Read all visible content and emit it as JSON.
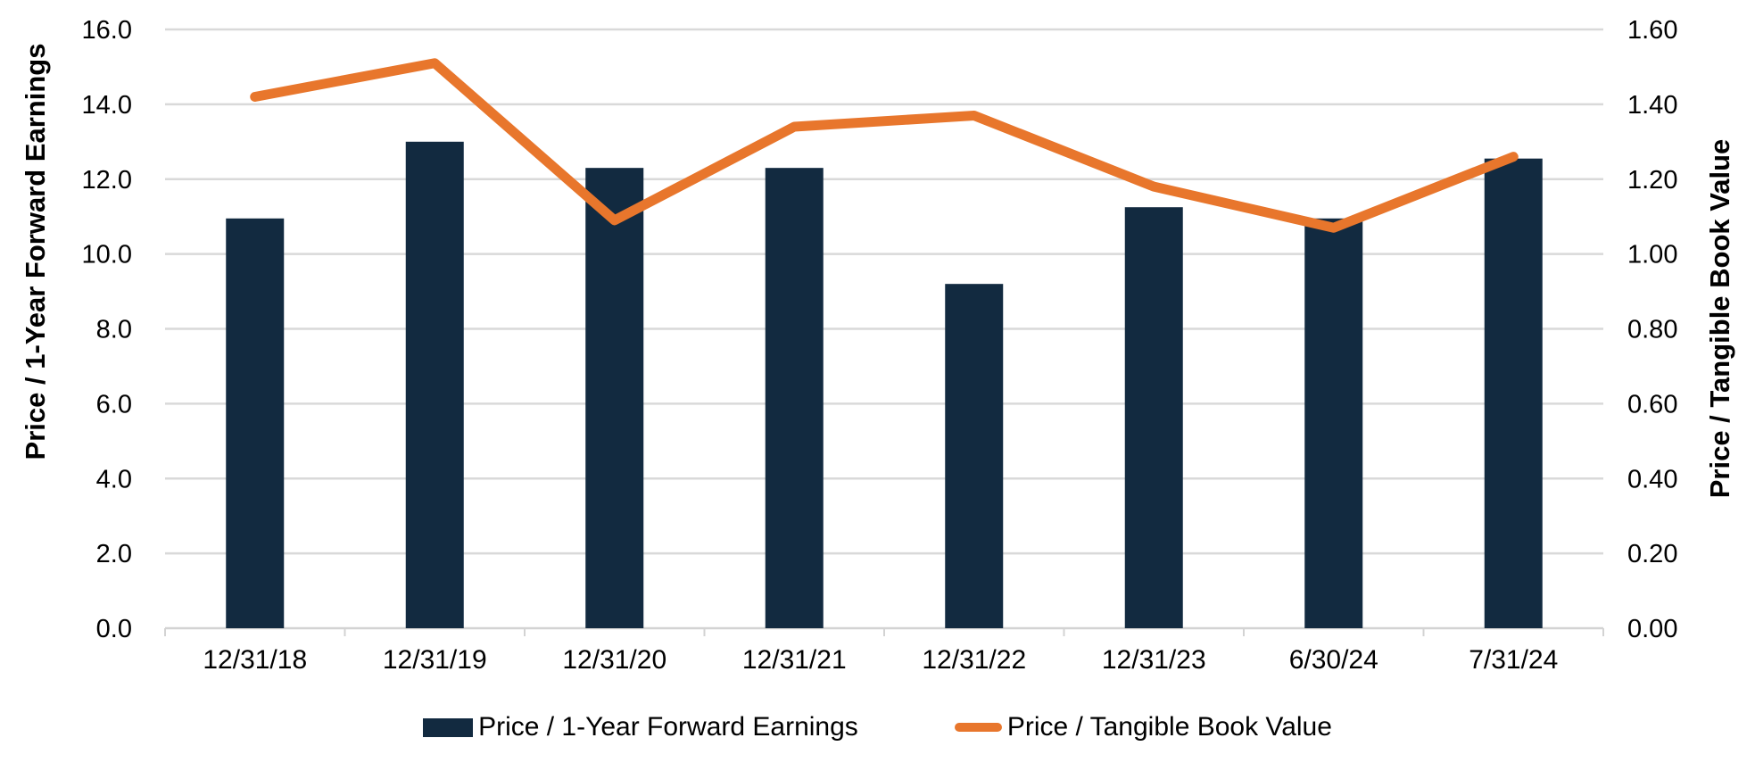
{
  "chart_data": {
    "type": "bar",
    "subtype": "combo-bar-line-dual-axis",
    "categories": [
      "12/31/18",
      "12/31/19",
      "12/31/20",
      "12/31/21",
      "12/31/22",
      "12/31/23",
      "6/30/24",
      "7/31/24"
    ],
    "series": [
      {
        "name": "Price / 1-Year Forward Earnings",
        "type": "bar",
        "axis": "left",
        "color": "#122A40",
        "values": [
          10.95,
          13.0,
          12.3,
          12.3,
          9.2,
          11.25,
          10.95,
          12.55
        ]
      },
      {
        "name": "Price / Tangible Book Value",
        "type": "line",
        "axis": "right",
        "color": "#E8762C",
        "values": [
          1.42,
          1.51,
          1.09,
          1.34,
          1.37,
          1.18,
          1.07,
          1.26
        ]
      }
    ],
    "left_axis": {
      "title": "Price / 1-Year Forward Earnings",
      "min": 0,
      "max": 16,
      "step": 2,
      "tick_labels": [
        "0.0",
        "2.0",
        "4.0",
        "6.0",
        "8.0",
        "10.0",
        "12.0",
        "14.0",
        "16.0"
      ]
    },
    "right_axis": {
      "title": "Price / Tangible Book Value",
      "min": 0,
      "max": 1.6,
      "step": 0.2,
      "tick_labels": [
        "0.00",
        "0.20",
        "0.40",
        "0.60",
        "0.80",
        "1.00",
        "1.20",
        "1.40",
        "1.60"
      ]
    },
    "grid": true,
    "legend_position": "bottom",
    "colors": {
      "bar": "#122A40",
      "line": "#E8762C",
      "gridline": "#D9D9D9",
      "axis_line": "#D3D3D3",
      "text": "#000000",
      "background": "#FFFFFF"
    }
  }
}
